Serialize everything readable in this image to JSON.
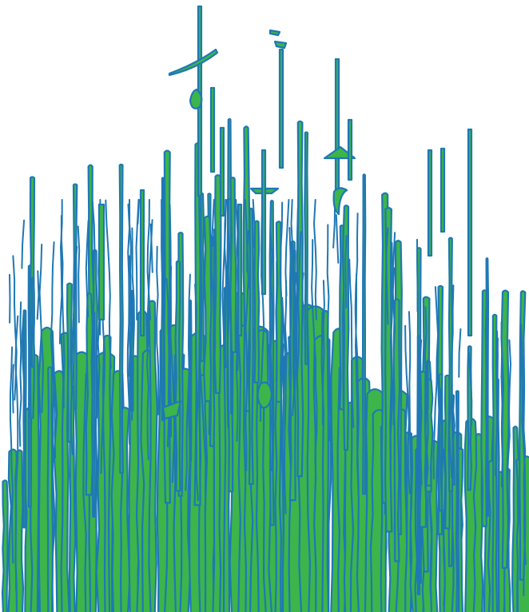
{
  "artwork": {
    "background": "#ffffff",
    "fill_color": "#3db54a",
    "outline_color": "#1f78b4",
    "icon": "vertical-stroke-glyph"
  }
}
